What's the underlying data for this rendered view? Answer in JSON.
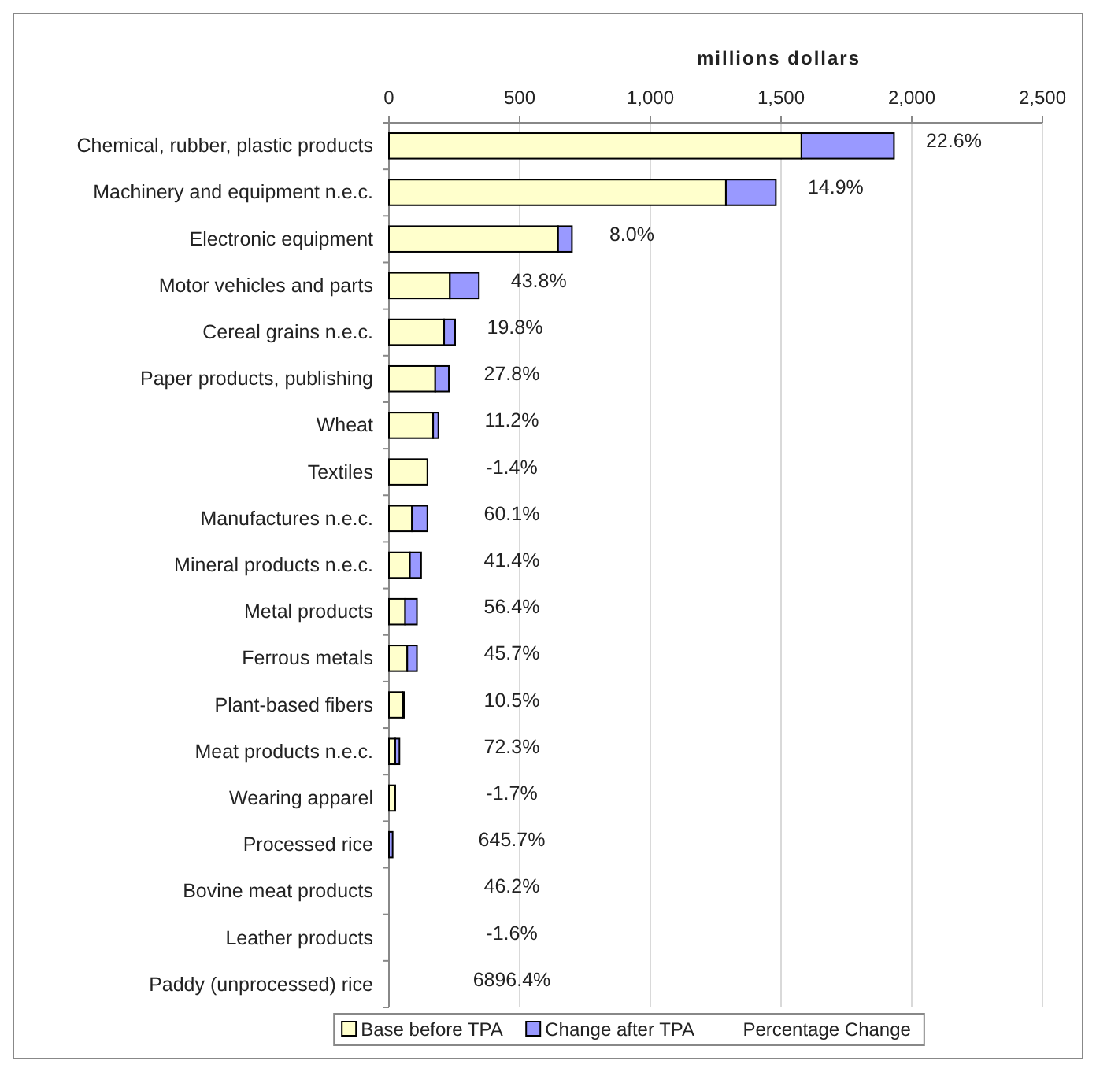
{
  "chart_data": {
    "type": "bar",
    "orientation": "horizontal",
    "stacked": true,
    "xlabel": "millions dollars",
    "categories": [
      "Chemical, rubber, plastic products",
      "Machinery and equipment n.e.c.",
      "Electronic equipment",
      "Motor vehicles and parts",
      "Cereal grains n.e.c.",
      "Paper products, publishing",
      "Wheat",
      "Textiles",
      "Manufactures n.e.c.",
      "Mineral products n.e.c.",
      "Metal products",
      "Ferrous metals",
      "Plant-based fibers",
      "Meat products n.e.c.",
      "Wearing apparel",
      "Processed rice",
      "Bovine meat products",
      "Leather products",
      "Paddy (unprocessed) rice"
    ],
    "series": [
      {
        "name": "Base before TPA",
        "color": "#ffffcc",
        "values": [
          1578,
          1289,
          647,
          233,
          211,
          177,
          169,
          147,
          88,
          80,
          62,
          70,
          52,
          24,
          24,
          null,
          null,
          null,
          null
        ]
      },
      {
        "name": "Change after TPA",
        "color": "#9999ff",
        "values": [
          354,
          191,
          53,
          111,
          42,
          52,
          20,
          0,
          59,
          43,
          45,
          37,
          6,
          16,
          0,
          14,
          null,
          null,
          null
        ]
      }
    ],
    "annotations": [
      "22.6%",
      "14.9%",
      "8.0%",
      "43.8%",
      "19.8%",
      "27.8%",
      "11.2%",
      "-1.4%",
      "60.1%",
      "41.4%",
      "56.4%",
      "45.7%",
      "10.5%",
      "72.3%",
      "-1.7%",
      "645.7%",
      "46.2%",
      "-1.6%",
      "6896.4%"
    ],
    "legend_title": "Percentage Change",
    "xlim": [
      0,
      2500
    ],
    "xticks": [
      0,
      500,
      {
        "value": 1000,
        "label": "1,000"
      },
      {
        "value": 1500,
        "label": "1,500"
      },
      {
        "value": 2000,
        "label": "2,000"
      },
      {
        "value": 2500,
        "label": "2,500"
      }
    ],
    "grid": "x",
    "legend": "bottom"
  }
}
